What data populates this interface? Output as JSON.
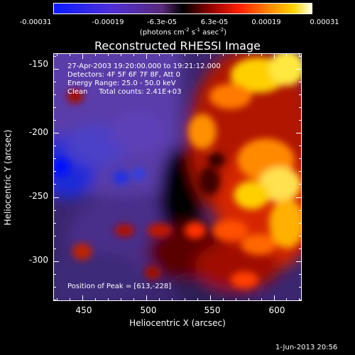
{
  "colorbar": {
    "tick_labels": [
      "-0.00031",
      "-0.00019",
      "-6.3e-05",
      "6.3e-05",
      "0.00019",
      "0.00031"
    ],
    "units_prefix": "(photons cm",
    "units_exp1": "-2",
    "units_mid": " s",
    "units_exp2": "-1",
    "units_mid2": " asec",
    "units_exp3": "-2",
    "units_suffix": ")"
  },
  "title": "Reconstructed RHESSI Image",
  "annotations": {
    "line1": "27-Apr-2003 19:20:00.000 to 19:21:12.000",
    "line2": "Detectors: 4F 5F 6F 7F 8F, Att 0",
    "line3": "Energy Range: 25.0 - 50.0 keV",
    "line4": "Clean     Total counts: 2.41E+03",
    "peak": "Position of Peak = [613,-228]"
  },
  "footer": "1-Jun-2013 20:56",
  "chart_data": {
    "type": "heatmap",
    "title": "Reconstructed RHESSI Image",
    "xlabel": "Heliocentric X (arcsec)",
    "ylabel": "Heliocentric Y (arcsec)",
    "x_ticks": [
      "450",
      "500",
      "550",
      "600"
    ],
    "y_ticks": [
      "-150",
      "-200",
      "-250",
      "-300"
    ],
    "xlim": [
      427,
      622
    ],
    "ylim": [
      -331,
      -138
    ],
    "colorbar_range": [
      -0.00031,
      0.00031
    ],
    "peak": [
      613,
      -228
    ]
  }
}
